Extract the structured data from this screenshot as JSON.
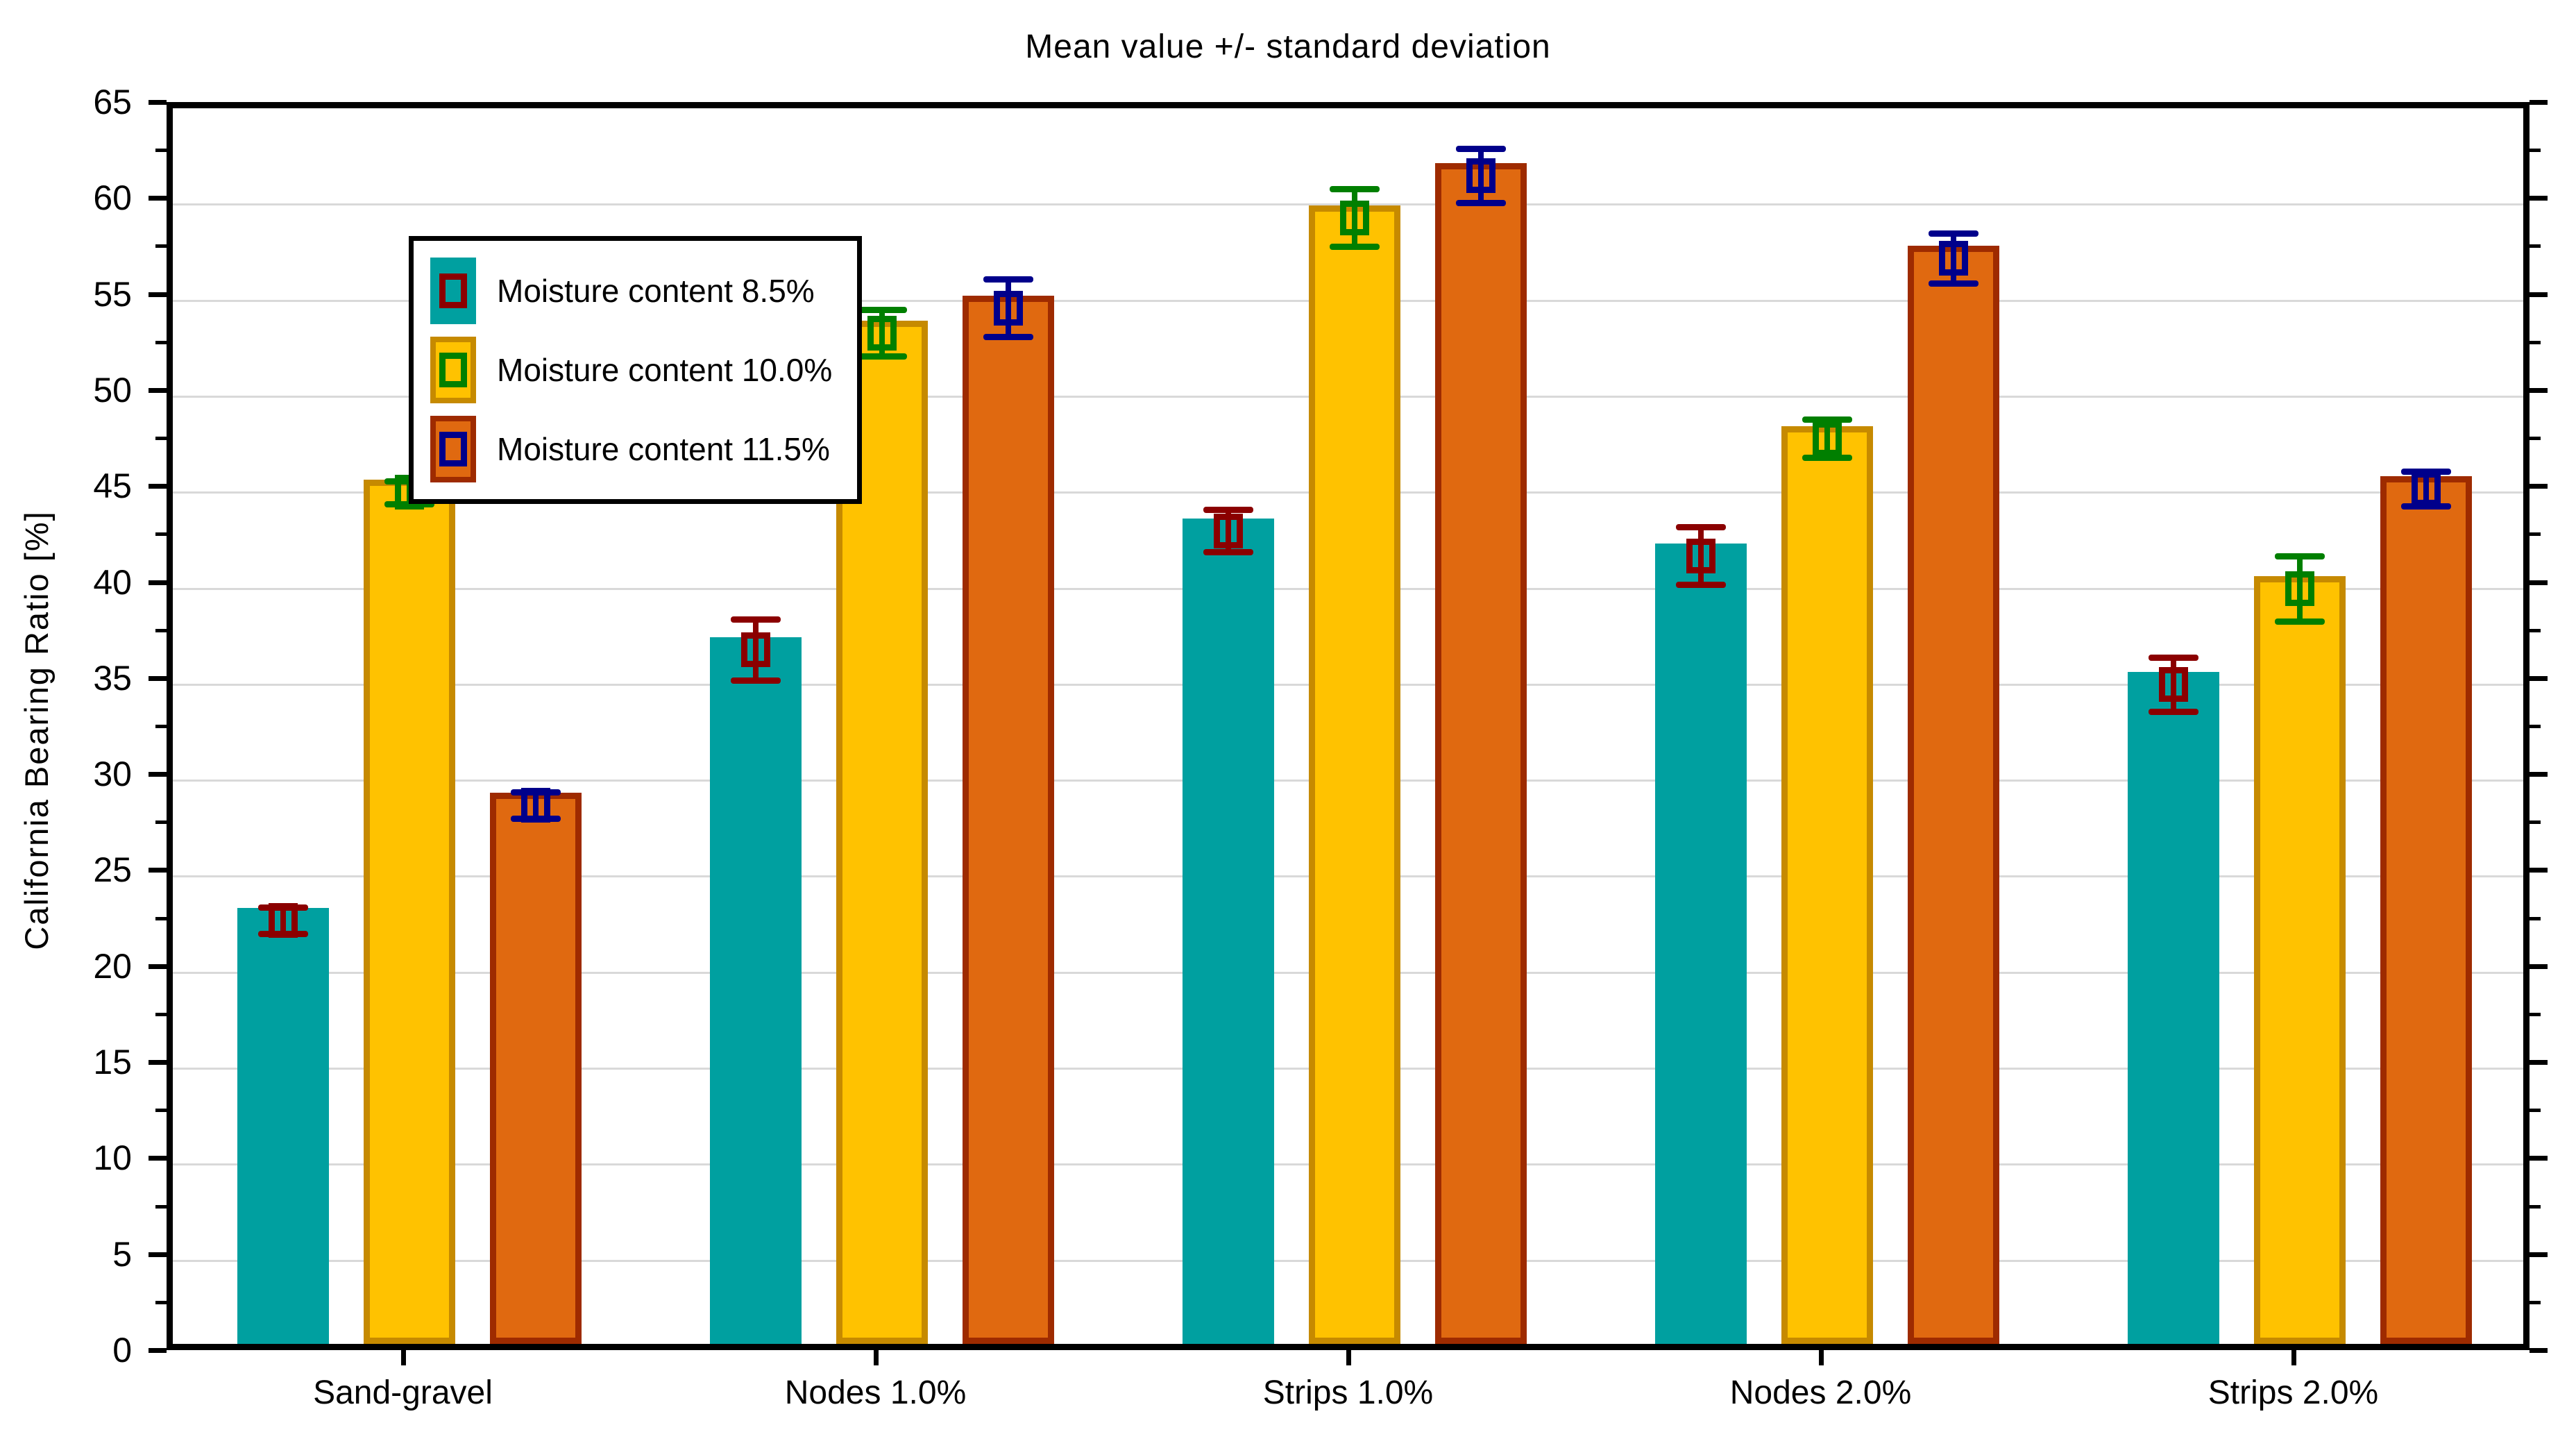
{
  "chart_data": {
    "type": "bar",
    "title": "Mean value +/- standard deviation",
    "ylabel": "California Bearing Ratio  [%]",
    "xlabel": "",
    "ylim": [
      0,
      65
    ],
    "y_major_step": 5,
    "y_minor_step": 2.5,
    "grid": "horizontal-major-only",
    "gridline_color": "#d9d9d9",
    "axis_color": "#000000",
    "background_color": "#ffffff",
    "legend_position": "upper-left-inside",
    "error_bar_style": "mean marker square with +/- sd whiskers and caps",
    "categories": [
      "Sand-gravel",
      "Nodes 1.0%",
      "Strips 1.0%",
      "Nodes 2.0%",
      "Strips 2.0%"
    ],
    "series": [
      {
        "name": "Moisture content 8.5%",
        "bar_color": "#00a0a0",
        "bar_border_color": "#00a0a0",
        "error_color": "#8b0000",
        "means": [
          22.7,
          36.8,
          43.0,
          41.7,
          35.0
        ],
        "sd": [
          0.7,
          1.6,
          1.1,
          1.5,
          1.4
        ]
      },
      {
        "name": "Moisture content 10.0%",
        "bar_color": "#ffc200",
        "bar_border_color": "#c68a00",
        "error_color": "#007f00",
        "means": [
          45.0,
          53.3,
          59.3,
          47.8,
          40.0
        ],
        "sd": [
          0.6,
          1.2,
          1.5,
          1.0,
          1.7
        ]
      },
      {
        "name": "Moisture content 11.5%",
        "bar_color": "#e06910",
        "bar_border_color": "#9e2b00",
        "error_color": "#00008b",
        "means": [
          28.7,
          54.6,
          61.5,
          57.2,
          45.2
        ],
        "sd": [
          0.7,
          1.5,
          1.4,
          1.3,
          0.9
        ]
      }
    ]
  }
}
